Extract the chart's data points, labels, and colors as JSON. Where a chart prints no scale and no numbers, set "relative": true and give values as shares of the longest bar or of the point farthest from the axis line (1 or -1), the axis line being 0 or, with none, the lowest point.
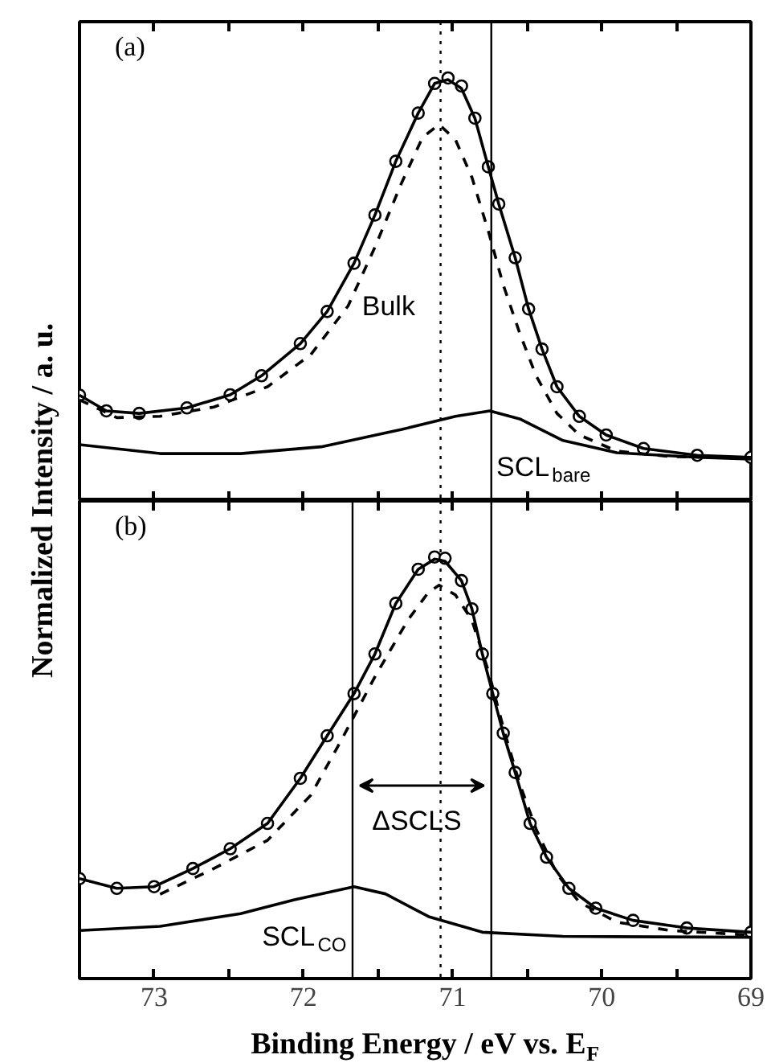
{
  "chart_data": [
    {
      "type": "line",
      "relative": true,
      "xlim": [
        73.5,
        69
      ],
      "xticks": [
        73,
        {
          "value": 72.5,
          "label": null
        },
        {
          "value": 72,
          "label": null
        },
        {
          "value": 71.5,
          "label": null
        },
        {
          "value": 71,
          "label": null
        },
        {
          "value": 70.5,
          "label": null
        },
        {
          "value": 70,
          "label": null
        },
        {
          "value": 69.5,
          "label": null
        },
        {
          "value": 69,
          "label": null
        }
      ],
      "tick_labels": false,
      "series": [
        {
          "type": "scatter",
          "marker": "circle",
          "color": "#000000",
          "x": [
            73.5,
            73.32,
            73.1,
            72.78,
            72.49,
            72.28,
            72.02,
            71.84,
            71.66,
            71.52,
            71.38,
            71.23,
            71.12,
            71.03,
            70.94,
            70.85,
            70.76,
            70.69,
            70.58,
            70.49,
            70.4,
            70.3,
            70.15,
            69.97,
            69.72,
            69.36,
            69.0
          ],
          "values": [
            0.25,
            0.213,
            0.207,
            0.22,
            0.251,
            0.296,
            0.372,
            0.448,
            0.562,
            0.676,
            0.803,
            0.917,
            0.987,
            1.0,
            0.981,
            0.905,
            0.79,
            0.702,
            0.575,
            0.454,
            0.359,
            0.27,
            0.2,
            0.156,
            0.124,
            0.108,
            0.103
          ]
        },
        {
          "line_style": "solid",
          "color": "#000000",
          "x": [
            73.5,
            73.32,
            73.1,
            72.78,
            72.49,
            72.28,
            72.02,
            71.84,
            71.66,
            71.52,
            71.38,
            71.23,
            71.12,
            71.03,
            70.94,
            70.85,
            70.76,
            70.69,
            70.58,
            70.49,
            70.4,
            70.3,
            70.15,
            69.97,
            69.72,
            69.36,
            69.0
          ],
          "values": [
            0.25,
            0.213,
            0.207,
            0.22,
            0.251,
            0.296,
            0.372,
            0.448,
            0.562,
            0.676,
            0.803,
            0.917,
            0.987,
            0.996,
            0.975,
            0.905,
            0.79,
            0.702,
            0.575,
            0.454,
            0.359,
            0.27,
            0.2,
            0.156,
            0.124,
            0.108,
            0.103
          ]
        },
        {
          "line_style": "dashed",
          "color": "#000000",
          "x": [
            73.5,
            73.25,
            72.96,
            72.6,
            72.24,
            71.95,
            71.7,
            71.52,
            71.34,
            71.2,
            71.09,
            70.98,
            70.87,
            70.76,
            70.66,
            70.55,
            70.44,
            70.3,
            70.15,
            69.9,
            69.54,
            69.0
          ],
          "values": [
            0.239,
            0.197,
            0.2,
            0.222,
            0.27,
            0.346,
            0.461,
            0.6,
            0.753,
            0.86,
            0.89,
            0.854,
            0.765,
            0.638,
            0.511,
            0.397,
            0.296,
            0.207,
            0.156,
            0.118,
            0.105,
            0.102
          ]
        },
        {
          "line_style": "solid",
          "color": "#000000",
          "x": [
            73.5,
            72.96,
            72.42,
            71.88,
            71.34,
            70.98,
            70.75,
            70.55,
            70.26,
            69.9,
            69.36,
            69.0
          ],
          "values": [
            0.133,
            0.112,
            0.112,
            0.128,
            0.169,
            0.2,
            0.213,
            0.194,
            0.143,
            0.114,
            0.103,
            0.099
          ]
        }
      ],
      "ref_lines": [
        {
          "axis": "x",
          "value": 71.08,
          "line_style": "dotted",
          "color": "#000000"
        },
        {
          "axis": "x",
          "value": 70.74,
          "line_style": "solid",
          "color": "#000000"
        }
      ],
      "annotations": [
        "(a)",
        "Bulk",
        "SCL$_{bare}$"
      ]
    },
    {
      "type": "line",
      "relative": true,
      "xlim": [
        73.5,
        69
      ],
      "xticks": [
        73,
        {
          "value": 72.5,
          "label": null
        },
        72,
        {
          "value": 71.5,
          "label": null
        },
        71,
        {
          "value": 70.5,
          "label": null
        },
        70,
        {
          "value": 69.5,
          "label": null
        },
        69
      ],
      "tick_labels": "x",
      "xlabel": "Binding Energy / eV vs. E$_{F}$",
      "ylabel": "Normalized Intensity / a. u.",
      "series": [
        {
          "type": "scatter",
          "marker": "circle",
          "color": "#000000",
          "x": [
            73.5,
            73.25,
            73.0,
            72.74,
            72.49,
            72.24,
            72.02,
            71.84,
            71.66,
            71.52,
            71.38,
            71.23,
            71.12,
            71.05,
            70.94,
            70.87,
            70.8,
            70.73,
            70.66,
            70.58,
            70.48,
            70.37,
            70.22,
            70.04,
            69.79,
            69.43,
            69.0
          ],
          "values": [
            0.237,
            0.214,
            0.218,
            0.261,
            0.308,
            0.368,
            0.475,
            0.576,
            0.676,
            0.77,
            0.89,
            0.971,
            1.0,
            0.997,
            0.944,
            0.877,
            0.77,
            0.676,
            0.582,
            0.489,
            0.368,
            0.288,
            0.214,
            0.167,
            0.138,
            0.12,
            0.11
          ]
        },
        {
          "line_style": "solid",
          "color": "#000000",
          "x": [
            73.5,
            73.25,
            73.0,
            72.74,
            72.49,
            72.24,
            72.02,
            71.84,
            71.66,
            71.52,
            71.38,
            71.23,
            71.12,
            71.05,
            70.94,
            70.87,
            70.8,
            70.73,
            70.66,
            70.58,
            70.48,
            70.37,
            70.22,
            70.04,
            69.79,
            69.43,
            69.0
          ],
          "values": [
            0.237,
            0.214,
            0.218,
            0.261,
            0.308,
            0.368,
            0.475,
            0.576,
            0.676,
            0.77,
            0.89,
            0.971,
            0.995,
            0.99,
            0.944,
            0.877,
            0.77,
            0.676,
            0.582,
            0.489,
            0.368,
            0.288,
            0.214,
            0.167,
            0.138,
            0.12,
            0.11
          ]
        },
        {
          "line_style": "dashed",
          "color": "#000000",
          "x": [
            72.96,
            72.6,
            72.24,
            71.95,
            71.74,
            71.52,
            71.3,
            71.16,
            71.09,
            70.98,
            70.87,
            70.76,
            70.66,
            70.55,
            70.44,
            70.3,
            70.15,
            69.9,
            69.54,
            69.0
          ],
          "values": [
            0.2,
            0.261,
            0.328,
            0.435,
            0.569,
            0.716,
            0.85,
            0.917,
            0.933,
            0.91,
            0.85,
            0.73,
            0.596,
            0.462,
            0.355,
            0.248,
            0.181,
            0.134,
            0.114,
            0.103
          ]
        },
        {
          "line_style": "solid",
          "color": "#000000",
          "x": [
            73.5,
            72.96,
            72.42,
            72.06,
            71.66,
            71.45,
            71.16,
            70.8,
            70.26,
            69.0
          ],
          "values": [
            0.114,
            0.124,
            0.154,
            0.187,
            0.218,
            0.201,
            0.147,
            0.11,
            0.1,
            0.098
          ]
        }
      ],
      "ref_lines": [
        {
          "axis": "x",
          "value": 71.08,
          "line_style": "dotted",
          "color": "#000000"
        },
        {
          "axis": "x",
          "value": 70.74,
          "line_style": "solid",
          "color": "#000000"
        },
        {
          "axis": "x",
          "value": 71.67,
          "line_style": "solid",
          "color": "#000000"
        }
      ],
      "annotations": [
        "(b)",
        "SCL$_{CO}$",
        "ΔSCLS"
      ]
    }
  ]
}
